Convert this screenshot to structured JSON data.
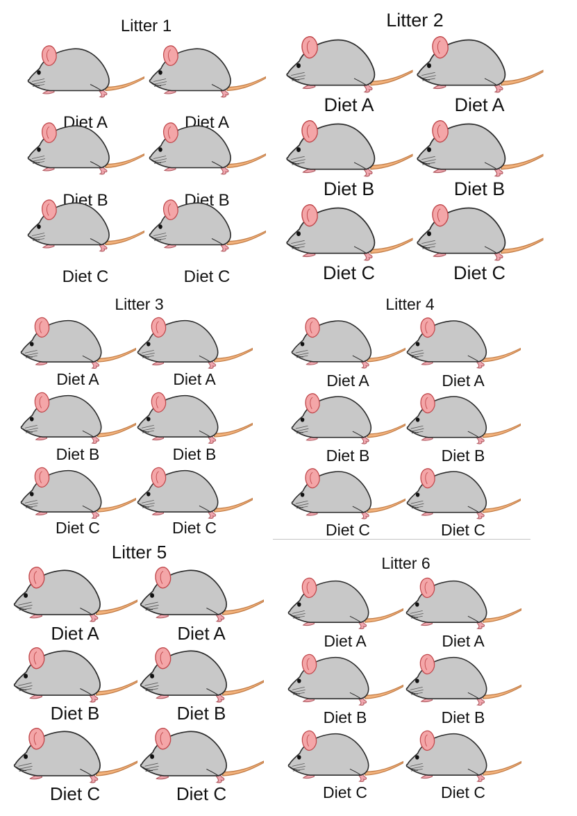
{
  "litters": [
    {
      "title": "Litter 1",
      "mice": [
        {
          "diet": "Diet A"
        },
        {
          "diet": "Diet A"
        },
        {
          "diet": "Diet B"
        },
        {
          "diet": "Diet B"
        },
        {
          "diet": "Diet C"
        },
        {
          "diet": "Diet C"
        }
      ]
    },
    {
      "title": "Litter 2",
      "mice": [
        {
          "diet": "Diet A"
        },
        {
          "diet": "Diet A"
        },
        {
          "diet": "Diet B"
        },
        {
          "diet": "Diet B"
        },
        {
          "diet": "Diet C"
        },
        {
          "diet": "Diet C"
        }
      ]
    },
    {
      "title": "Litter 3",
      "mice": [
        {
          "diet": "Diet A"
        },
        {
          "diet": "Diet A"
        },
        {
          "diet": "Diet B"
        },
        {
          "diet": "Diet B"
        },
        {
          "diet": "Diet C"
        },
        {
          "diet": "Diet C"
        }
      ]
    },
    {
      "title": "Litter 4",
      "mice": [
        {
          "diet": "Diet A"
        },
        {
          "diet": "Diet A"
        },
        {
          "diet": "Diet B"
        },
        {
          "diet": "Diet B"
        },
        {
          "diet": "Diet C"
        },
        {
          "diet": "Diet C"
        }
      ]
    },
    {
      "title": "Litter 5",
      "mice": [
        {
          "diet": "Diet A"
        },
        {
          "diet": "Diet A"
        },
        {
          "diet": "Diet B"
        },
        {
          "diet": "Diet B"
        },
        {
          "diet": "Diet C"
        },
        {
          "diet": "Diet C"
        }
      ]
    },
    {
      "title": "Litter 6",
      "mice": [
        {
          "diet": "Diet A"
        },
        {
          "diet": "Diet A"
        },
        {
          "diet": "Diet B"
        },
        {
          "diet": "Diet B"
        },
        {
          "diet": "Diet C"
        },
        {
          "diet": "Diet C"
        }
      ]
    }
  ],
  "colors": {
    "body": "#c8c8c8",
    "outline": "#2b2b2b",
    "ear": "#f4a6a8",
    "ear_outline": "#c0484c",
    "feet": "#f1a8b0",
    "tail": "#f2b27c",
    "tail_outline": "#c07a44",
    "eye": "#111111"
  }
}
